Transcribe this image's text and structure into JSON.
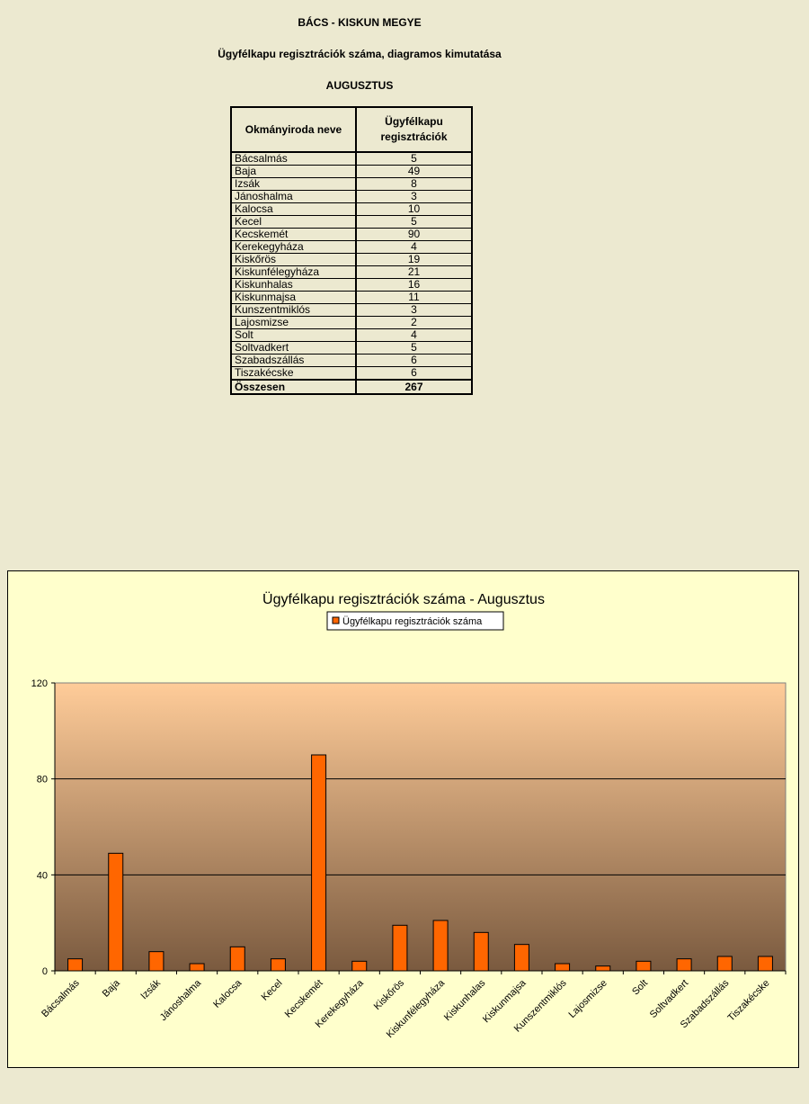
{
  "header": {
    "county": "BÁCS - KISKUN MEGYE",
    "subtitle": "Ügyfélkapu regisztrációk száma, diagramos kimutatása",
    "month": "AUGUSZTUS"
  },
  "table": {
    "col1_header": "Okmányiroda neve",
    "col2_header_line1": "Ügyfélkapu",
    "col2_header_line2": "regisztrációk",
    "rows": [
      {
        "name": "Bácsalmás",
        "value": "5"
      },
      {
        "name": "Baja",
        "value": "49"
      },
      {
        "name": "Izsák",
        "value": "8"
      },
      {
        "name": "Jánoshalma",
        "value": "3"
      },
      {
        "name": "Kalocsa",
        "value": "10"
      },
      {
        "name": "Kecel",
        "value": "5"
      },
      {
        "name": "Kecskemét",
        "value": "90"
      },
      {
        "name": "Kerekegyháza",
        "value": "4"
      },
      {
        "name": "Kiskőrös",
        "value": "19"
      },
      {
        "name": "Kiskunfélegyháza",
        "value": "21"
      },
      {
        "name": "Kiskunhalas",
        "value": "16"
      },
      {
        "name": "Kiskunmajsa",
        "value": "11"
      },
      {
        "name": "Kunszentmiklós",
        "value": "3"
      },
      {
        "name": "Lajosmizse",
        "value": "2"
      },
      {
        "name": "Solt",
        "value": "4"
      },
      {
        "name": "Soltvadkert",
        "value": "5"
      },
      {
        "name": "Szabadszállás",
        "value": "6"
      },
      {
        "name": "Tiszakécske",
        "value": "6"
      }
    ],
    "total_label": "Összesen",
    "total_value": "267"
  },
  "chart_data": {
    "type": "bar",
    "title": "Ügyfélkapu regisztrációk száma - Augusztus",
    "categories": [
      "Bácsalmás",
      "Baja",
      "Izsák",
      "Jánoshalma",
      "Kalocsa",
      "Kecel",
      "Kecskemét",
      "Kerekegyháza",
      "Kiskőrös",
      "Kiskunfélegyháza",
      "Kiskunhalas",
      "Kiskunmajsa",
      "Kunszentmiklós",
      "Lajosmizse",
      "Solt",
      "Soltvadkert",
      "Szabadszállás",
      "Tiszakécske"
    ],
    "series": [
      {
        "name": "Ügyfélkapu regisztrációk száma",
        "values": [
          5,
          49,
          8,
          3,
          10,
          5,
          90,
          4,
          19,
          21,
          16,
          11,
          3,
          2,
          4,
          5,
          6,
          6
        ],
        "color": "#ff6600"
      }
    ],
    "ylim": [
      0,
      120
    ],
    "yticks": [
      0,
      40,
      80,
      120
    ],
    "grid": true,
    "legend": "top-center",
    "plot_gradient": [
      "#ffcc99",
      "#7a5a3f"
    ]
  }
}
